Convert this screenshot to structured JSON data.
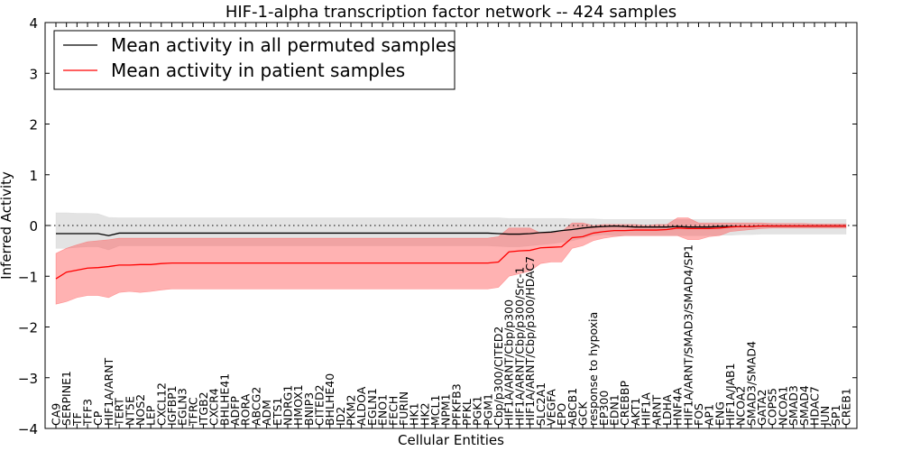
{
  "chart_data": {
    "type": "line",
    "title": "HIF-1-alpha transcription factor network -- 424 samples",
    "xlabel": "Cellular Entities",
    "ylabel": "Inferred Activity",
    "ylim": [
      -4,
      4
    ],
    "yticks": [
      -4,
      -3,
      -2,
      -1,
      0,
      1,
      2,
      3,
      4
    ],
    "ytick_labels": [
      "−4",
      "−3",
      "−2",
      "−1",
      "0",
      "1",
      "2",
      "3",
      "4"
    ],
    "grid": false,
    "legend_position": "top-left",
    "reference_line": 0,
    "categories": [
      "CA9",
      "SERPINE1",
      "TF",
      "TFF3",
      "CP",
      "HIF1A/ARNT",
      "TERT",
      "NT5E",
      "NOS2",
      "LEP",
      "CXCL12",
      "IGFBP1",
      "EGLN3",
      "TFRC",
      "ITGB2",
      "CXCR4",
      "BHLHE41",
      "ADFP",
      "RORA",
      "ABCG2",
      "ADM",
      "ETS1",
      "NDRG1",
      "HMOX1",
      "BNIP3",
      "CITED2",
      "BHLHE40",
      "ID2",
      "PKM2",
      "ALDOA",
      "EGLN1",
      "ENO1",
      "FECH",
      "FURIN",
      "HK1",
      "HK2",
      "MCL1",
      "NPM1",
      "PFKFB3",
      "PFKL",
      "PGK1",
      "PGM1",
      "Cbp/p300/CITED2",
      "HIF1A/ARNT/Cbp/p300",
      "HIF1A/ARNT/Cbp/p300/Src-1",
      "HIF1A/ARNT/Cbp/p300/HDAC7",
      "SLC2A1",
      "VEGFA",
      "EPO",
      "ABCB1",
      "GCK",
      "response to hypoxia",
      "EP300",
      "EDN1",
      "CREBBP",
      "AKT1",
      "HIF1A",
      "ARNT",
      "LDHA",
      "HNF4A",
      "HIF1A/ARNT/SMAD3/SMAD4/SP1",
      "FOS",
      "AP1",
      "ENG",
      "HIF1A/JAB1",
      "NCOA2",
      "SMAD3/SMAD4",
      "GATA2",
      "COPS5",
      "NCOA1",
      "SMAD3",
      "SMAD4",
      "HDAC7",
      "JUN",
      "SP1",
      "CREB1"
    ],
    "series": [
      {
        "name": "Mean activity in all permuted samples",
        "color": "#000000",
        "values": [
          -0.16,
          -0.16,
          -0.16,
          -0.16,
          -0.16,
          -0.2,
          -0.15,
          -0.15,
          -0.15,
          -0.15,
          -0.15,
          -0.15,
          -0.15,
          -0.15,
          -0.15,
          -0.15,
          -0.15,
          -0.15,
          -0.15,
          -0.15,
          -0.15,
          -0.15,
          -0.15,
          -0.15,
          -0.15,
          -0.15,
          -0.15,
          -0.15,
          -0.15,
          -0.15,
          -0.15,
          -0.15,
          -0.15,
          -0.15,
          -0.15,
          -0.15,
          -0.15,
          -0.15,
          -0.15,
          -0.15,
          -0.15,
          -0.15,
          -0.16,
          -0.17,
          -0.17,
          -0.16,
          -0.14,
          -0.13,
          -0.1,
          -0.08,
          -0.05,
          -0.03,
          -0.02,
          -0.01,
          -0.02,
          -0.03,
          -0.03,
          -0.03,
          -0.03,
          -0.02,
          -0.03,
          -0.03,
          -0.03,
          -0.02,
          -0.02,
          -0.02,
          -0.02,
          -0.01,
          -0.01,
          -0.01,
          -0.01,
          -0.01,
          -0.01,
          -0.01,
          -0.01,
          -0.01
        ],
        "lower": [
          -0.45,
          -0.45,
          -0.43,
          -0.42,
          -0.42,
          -0.48,
          -0.4,
          -0.4,
          -0.4,
          -0.4,
          -0.4,
          -0.4,
          -0.4,
          -0.4,
          -0.4,
          -0.4,
          -0.4,
          -0.4,
          -0.4,
          -0.4,
          -0.4,
          -0.4,
          -0.4,
          -0.4,
          -0.4,
          -0.4,
          -0.4,
          -0.4,
          -0.4,
          -0.4,
          -0.4,
          -0.4,
          -0.4,
          -0.4,
          -0.4,
          -0.4,
          -0.4,
          -0.4,
          -0.4,
          -0.4,
          -0.4,
          -0.4,
          -0.41,
          -0.42,
          -0.42,
          -0.4,
          -0.38,
          -0.36,
          -0.33,
          -0.3,
          -0.25,
          -0.2,
          -0.18,
          -0.2,
          -0.2,
          -0.2,
          -0.2,
          -0.2,
          -0.2,
          -0.2,
          -0.2,
          -0.2,
          -0.2,
          -0.19,
          -0.19,
          -0.18,
          -0.18,
          -0.17,
          -0.17,
          -0.17,
          -0.17,
          -0.17,
          -0.17,
          -0.17,
          -0.17,
          -0.17
        ],
        "upper": [
          0.25,
          0.25,
          0.24,
          0.24,
          0.23,
          0.16,
          0.15,
          0.15,
          0.15,
          0.15,
          0.15,
          0.15,
          0.15,
          0.15,
          0.15,
          0.15,
          0.15,
          0.15,
          0.15,
          0.15,
          0.15,
          0.15,
          0.15,
          0.15,
          0.15,
          0.15,
          0.15,
          0.15,
          0.15,
          0.15,
          0.15,
          0.15,
          0.15,
          0.15,
          0.15,
          0.15,
          0.15,
          0.15,
          0.15,
          0.15,
          0.15,
          0.15,
          0.15,
          0.14,
          0.14,
          0.14,
          0.14,
          0.14,
          0.14,
          0.13,
          0.13,
          0.13,
          0.12,
          0.12,
          0.12,
          0.12,
          0.12,
          0.12,
          0.12,
          0.12,
          0.12,
          0.12,
          0.12,
          0.12,
          0.12,
          0.12,
          0.12,
          0.12,
          0.12,
          0.12,
          0.12,
          0.12,
          0.12,
          0.12,
          0.12,
          0.12
        ]
      },
      {
        "name": "Mean activity in patient samples",
        "color": "#ff0000",
        "values": [
          -1.05,
          -0.92,
          -0.88,
          -0.84,
          -0.83,
          -0.81,
          -0.78,
          -0.78,
          -0.77,
          -0.77,
          -0.75,
          -0.74,
          -0.74,
          -0.74,
          -0.74,
          -0.74,
          -0.74,
          -0.74,
          -0.74,
          -0.74,
          -0.74,
          -0.74,
          -0.74,
          -0.74,
          -0.74,
          -0.74,
          -0.74,
          -0.74,
          -0.74,
          -0.74,
          -0.74,
          -0.74,
          -0.74,
          -0.74,
          -0.74,
          -0.74,
          -0.74,
          -0.74,
          -0.74,
          -0.74,
          -0.74,
          -0.74,
          -0.72,
          -0.52,
          -0.5,
          -0.49,
          -0.44,
          -0.43,
          -0.42,
          -0.24,
          -0.22,
          -0.15,
          -0.12,
          -0.1,
          -0.1,
          -0.09,
          -0.09,
          -0.09,
          -0.08,
          -0.05,
          -0.06,
          -0.06,
          -0.06,
          -0.05,
          -0.03,
          -0.02,
          -0.02,
          -0.01,
          -0.01,
          -0.01,
          -0.01,
          -0.01,
          -0.01,
          -0.01,
          -0.01,
          -0.01
        ],
        "lower": [
          -1.55,
          -1.5,
          -1.42,
          -1.38,
          -1.38,
          -1.42,
          -1.32,
          -1.3,
          -1.32,
          -1.3,
          -1.27,
          -1.25,
          -1.25,
          -1.25,
          -1.25,
          -1.25,
          -1.25,
          -1.25,
          -1.25,
          -1.25,
          -1.25,
          -1.25,
          -1.25,
          -1.25,
          -1.25,
          -1.25,
          -1.25,
          -1.25,
          -1.25,
          -1.25,
          -1.25,
          -1.25,
          -1.25,
          -1.25,
          -1.25,
          -1.25,
          -1.25,
          -1.25,
          -1.25,
          -1.25,
          -1.25,
          -1.25,
          -1.22,
          -1.0,
          -0.95,
          -0.9,
          -0.75,
          -0.72,
          -0.72,
          -0.45,
          -0.4,
          -0.3,
          -0.25,
          -0.22,
          -0.2,
          -0.2,
          -0.2,
          -0.2,
          -0.2,
          -0.2,
          -0.28,
          -0.28,
          -0.22,
          -0.2,
          -0.12,
          -0.1,
          -0.08,
          -0.06,
          -0.05,
          -0.05,
          -0.05,
          -0.05,
          -0.05,
          -0.05,
          -0.05,
          -0.05
        ],
        "upper": [
          -0.55,
          -0.45,
          -0.38,
          -0.32,
          -0.3,
          -0.28,
          -0.25,
          -0.25,
          -0.25,
          -0.25,
          -0.25,
          -0.25,
          -0.25,
          -0.25,
          -0.25,
          -0.25,
          -0.25,
          -0.25,
          -0.25,
          -0.25,
          -0.25,
          -0.25,
          -0.25,
          -0.25,
          -0.25,
          -0.25,
          -0.25,
          -0.25,
          -0.25,
          -0.25,
          -0.25,
          -0.25,
          -0.25,
          -0.25,
          -0.25,
          -0.25,
          -0.25,
          -0.25,
          -0.25,
          -0.25,
          -0.25,
          -0.25,
          -0.22,
          -0.05,
          -0.05,
          -0.05,
          -0.15,
          -0.15,
          -0.12,
          0.05,
          0.05,
          0.0,
          0.02,
          0.02,
          0.02,
          0.02,
          0.0,
          0.02,
          0.02,
          0.15,
          0.15,
          0.05,
          0.05,
          0.05,
          0.05,
          0.05,
          0.05,
          0.05,
          0.04,
          0.04,
          0.04,
          0.04,
          0.03,
          0.03,
          0.03,
          0.03
        ]
      }
    ],
    "band_colors": {
      "permuted": "#d0d0d0",
      "patient": "#ff5555"
    }
  }
}
